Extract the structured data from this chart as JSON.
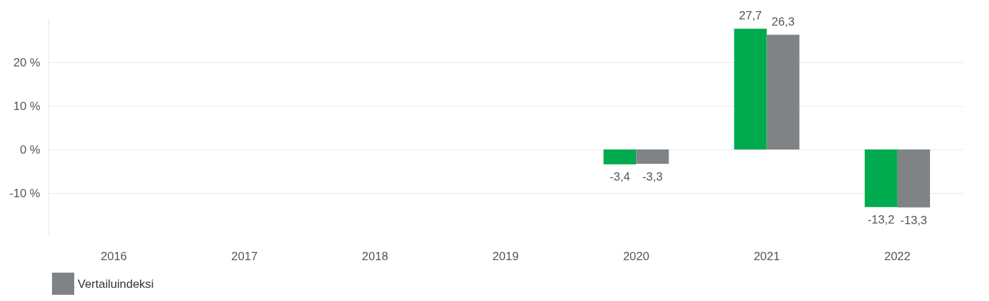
{
  "chart_data": {
    "type": "bar",
    "categories": [
      "2016",
      "2017",
      "2018",
      "2019",
      "2020",
      "2021",
      "2022"
    ],
    "series": [
      {
        "color": "#00aa4e",
        "values": [
          null,
          null,
          null,
          null,
          -3.4,
          27.7,
          -13.2
        ],
        "value_labels": [
          null,
          null,
          null,
          null,
          "-3,4",
          "27,7",
          "-13,2"
        ]
      },
      {
        "name": "Vertailuindeksi",
        "color": "#808386",
        "values": [
          null,
          null,
          null,
          null,
          -3.3,
          26.3,
          -13.3
        ],
        "value_labels": [
          null,
          null,
          null,
          null,
          "-3,3",
          "26,3",
          "-13,3"
        ]
      }
    ],
    "ylim": [
      -20,
      30
    ],
    "yticks": [
      {
        "value": -10,
        "label": "-10 %"
      },
      {
        "value": 0,
        "label": "0 %"
      },
      {
        "value": 10,
        "label": "10 %"
      },
      {
        "value": 20,
        "label": "20 %"
      }
    ],
    "grid": "y",
    "legend": "bottom left"
  }
}
